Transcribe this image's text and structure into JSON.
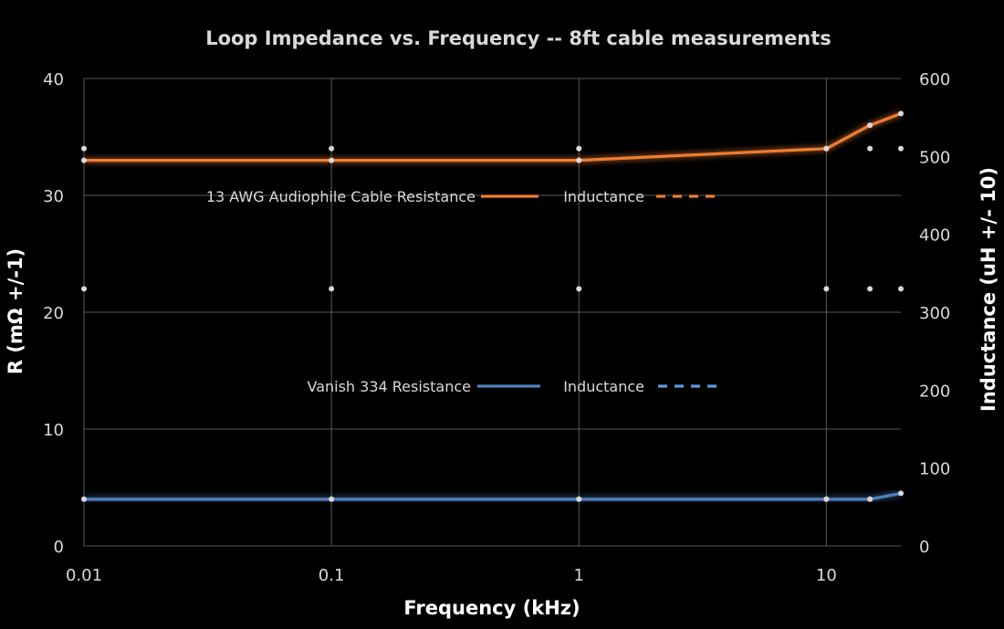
{
  "chart_data": {
    "type": "line",
    "title": "Loop Impedance vs. Frequency -- 8ft cable measurements",
    "xlabel": "Frequency (kHz)",
    "ylabel": "R (mΩ +/-1)",
    "y2label": "Inductance (uH +/- 10)",
    "x_scale": "log",
    "xlim": [
      0.01,
      20
    ],
    "ylim": [
      0,
      40
    ],
    "y2lim": [
      0,
      600
    ],
    "grid": true,
    "x_ticks": [
      "0.01",
      "0.1",
      "1",
      "10"
    ],
    "y_ticks": [
      "0",
      "10",
      "20",
      "30",
      "40"
    ],
    "y2_ticks": [
      "0",
      "100",
      "200",
      "300",
      "400",
      "500",
      "600"
    ],
    "series": [
      {
        "name": "13 AWG Audiophile Cable Resistance",
        "axis": "left",
        "style": "solid",
        "color": "#ed7d31",
        "x": [
          0.01,
          0.1,
          1,
          10,
          15,
          20
        ],
        "y": [
          33,
          33,
          33,
          34,
          36,
          37
        ]
      },
      {
        "name": "Inductance",
        "axis": "right",
        "style": "dashed",
        "color": "#ed7d31",
        "x": [
          0.01,
          0.1,
          1,
          10,
          15,
          20
        ],
        "y": [
          510,
          510,
          510,
          510,
          510,
          510
        ]
      },
      {
        "name": "Vanish 334 Resistance",
        "axis": "left",
        "style": "solid",
        "color": "#4f81bd",
        "x": [
          0.01,
          0.1,
          1,
          10,
          15,
          20
        ],
        "y": [
          4,
          4,
          4,
          4,
          4,
          4.5
        ]
      },
      {
        "name": "Inductance",
        "axis": "right",
        "style": "dashed",
        "color": "#5b9bd5",
        "x": [
          0.01,
          0.1,
          1,
          10,
          15,
          20
        ],
        "y": [
          330,
          330,
          330,
          330,
          330,
          330
        ]
      }
    ],
    "legend": [
      {
        "label": "13 AWG Audiophile Cable Resistance",
        "series": 0
      },
      {
        "label": "Inductance",
        "series": 1
      },
      {
        "label": "Vanish 334 Resistance",
        "series": 2
      },
      {
        "label": "Inductance",
        "series": 3
      }
    ]
  }
}
